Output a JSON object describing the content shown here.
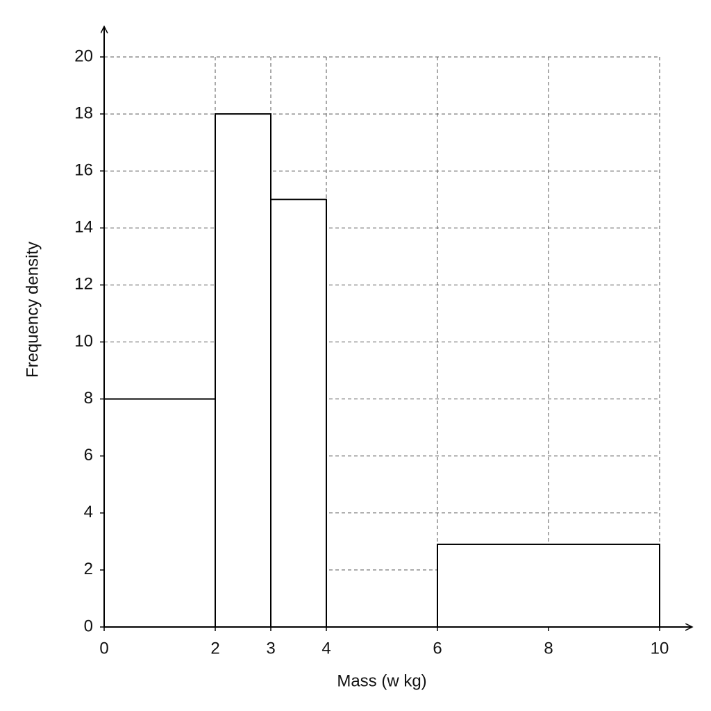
{
  "chart_data": {
    "type": "histogram",
    "x_label": "Mass (w kg)",
    "y_label": "Frequency density",
    "bins": [
      0,
      2,
      3,
      4,
      6,
      10
    ],
    "counts": [
      8,
      18,
      15,
      0,
      2.9
    ],
    "color": "#ffffff",
    "edge_color": "#000000",
    "xlim": [
      0,
      10
    ],
    "xticks": [
      0,
      2,
      3,
      4,
      6,
      8,
      10
    ],
    "ylim": [
      0,
      20
    ],
    "yticks": [
      0,
      2,
      4,
      6,
      8,
      10,
      12,
      14,
      16,
      18,
      20
    ],
    "grid": true
  }
}
